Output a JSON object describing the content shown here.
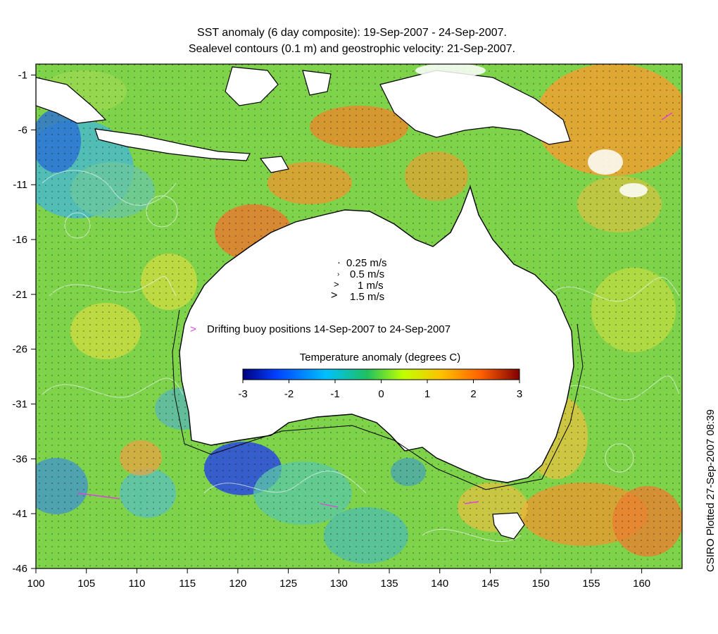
{
  "title": {
    "line1": "SST anomaly (6 day composite): 19-Sep-2007 - 24-Sep-2007.",
    "line2": "Sealevel contours (0.1 m) and geostrophic velocity: 21-Sep-2007."
  },
  "axes": {
    "x_ticks": [
      "100",
      "105",
      "110",
      "115",
      "120",
      "125",
      "130",
      "135",
      "140",
      "145",
      "150",
      "155",
      "160"
    ],
    "y_ticks": [
      "-1",
      "-6",
      "-11",
      "-16",
      "-21",
      "-26",
      "-31",
      "-36",
      "-41",
      "-46"
    ],
    "x_range": [
      100,
      164
    ],
    "y_range": [
      -46,
      0
    ]
  },
  "velocity_scale": {
    "items": [
      "0.25 m/s",
      "0.5 m/s",
      "1 m/s",
      "1.5 m/s"
    ]
  },
  "buoy_legend": {
    "symbol": ">",
    "label": "Drifting buoy positions 14-Sep-2007 to 24-Sep-2007",
    "color": "#e040e0"
  },
  "colorbar": {
    "title": "Temperature anomaly (degrees C)",
    "ticks": [
      "-3",
      "-2",
      "-1",
      "0",
      "1",
      "2",
      "3"
    ],
    "range": [
      -3,
      3
    ],
    "colors": [
      "#00007f",
      "#0040ff",
      "#00c0ff",
      "#20c060",
      "#c0ff00",
      "#ffc000",
      "#ff6000",
      "#800000"
    ]
  },
  "credit": "CSIRO Plotted 27-Sep-2007 08:39"
}
